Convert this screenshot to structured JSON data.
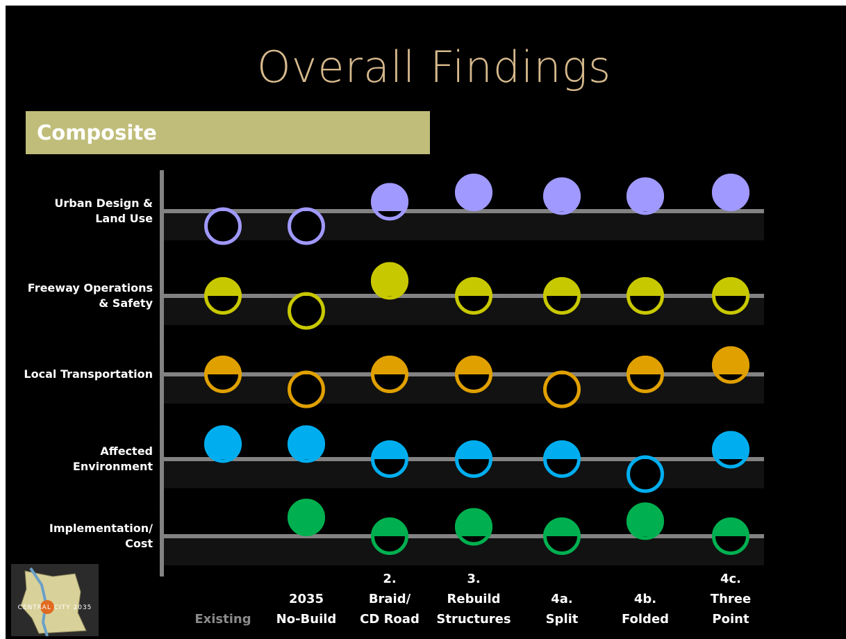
{
  "title": "Overall Findings",
  "banner": {
    "label": "Composite"
  },
  "logo": {
    "text": "CENTRAL CITY 2035"
  },
  "colors": {
    "background": "#000000",
    "title": "#d6b98c",
    "banner": "#c0bd7a",
    "urban": "#a099ff",
    "freeway": "#c8c800",
    "local": "#e0a000",
    "environment": "#00aeef",
    "implementation": "#00b050"
  },
  "chart_data": {
    "type": "harvey-ball matrix",
    "value_meaning": "fill level of circle: 0 = empty ring (below baseline), 1 = full circle (above baseline)",
    "categories": [
      {
        "lines": [
          "",
          "Existing"
        ],
        "dim": true
      },
      {
        "lines": [
          "",
          "2035",
          "No-Build"
        ]
      },
      {
        "lines": [
          "2.",
          "Braid/",
          "CD Road"
        ]
      },
      {
        "lines": [
          "3.",
          "Rebuild",
          "Structures"
        ]
      },
      {
        "lines": [
          "4a.",
          "Split"
        ]
      },
      {
        "lines": [
          "4b.",
          "Folded"
        ]
      },
      {
        "lines": [
          "4c.",
          "Three",
          "Point"
        ]
      }
    ],
    "series": [
      {
        "name": "Urban Design & Land Use",
        "lines": [
          "Urban Design &",
          "Land Use"
        ],
        "color": "#a099ff",
        "values": [
          0.1,
          0.1,
          0.75,
          1.0,
          0.9,
          0.9,
          1.0
        ]
      },
      {
        "name": "Freeway Operations & Safety",
        "lines": [
          "Freeway Operations",
          "& Safety"
        ],
        "color": "#c8c800",
        "values": [
          0.5,
          0.1,
          0.9,
          0.5,
          0.5,
          0.5,
          0.5
        ]
      },
      {
        "name": "Local Transportation",
        "lines": [
          "Local Transportation"
        ],
        "color": "#e0a000",
        "values": [
          0.5,
          0.1,
          0.5,
          0.5,
          0.1,
          0.5,
          0.75
        ]
      },
      {
        "name": "Affected Environment",
        "lines": [
          "Affected",
          "Environment"
        ],
        "color": "#00aeef",
        "values": [
          0.9,
          0.9,
          0.5,
          0.5,
          0.5,
          0.1,
          0.75
        ]
      },
      {
        "name": "Implementation/ Cost",
        "lines": [
          "Implementation/",
          "Cost"
        ],
        "color": "#00b050",
        "values": [
          null,
          1.0,
          0.5,
          0.75,
          0.5,
          0.9,
          0.5
        ]
      }
    ]
  }
}
